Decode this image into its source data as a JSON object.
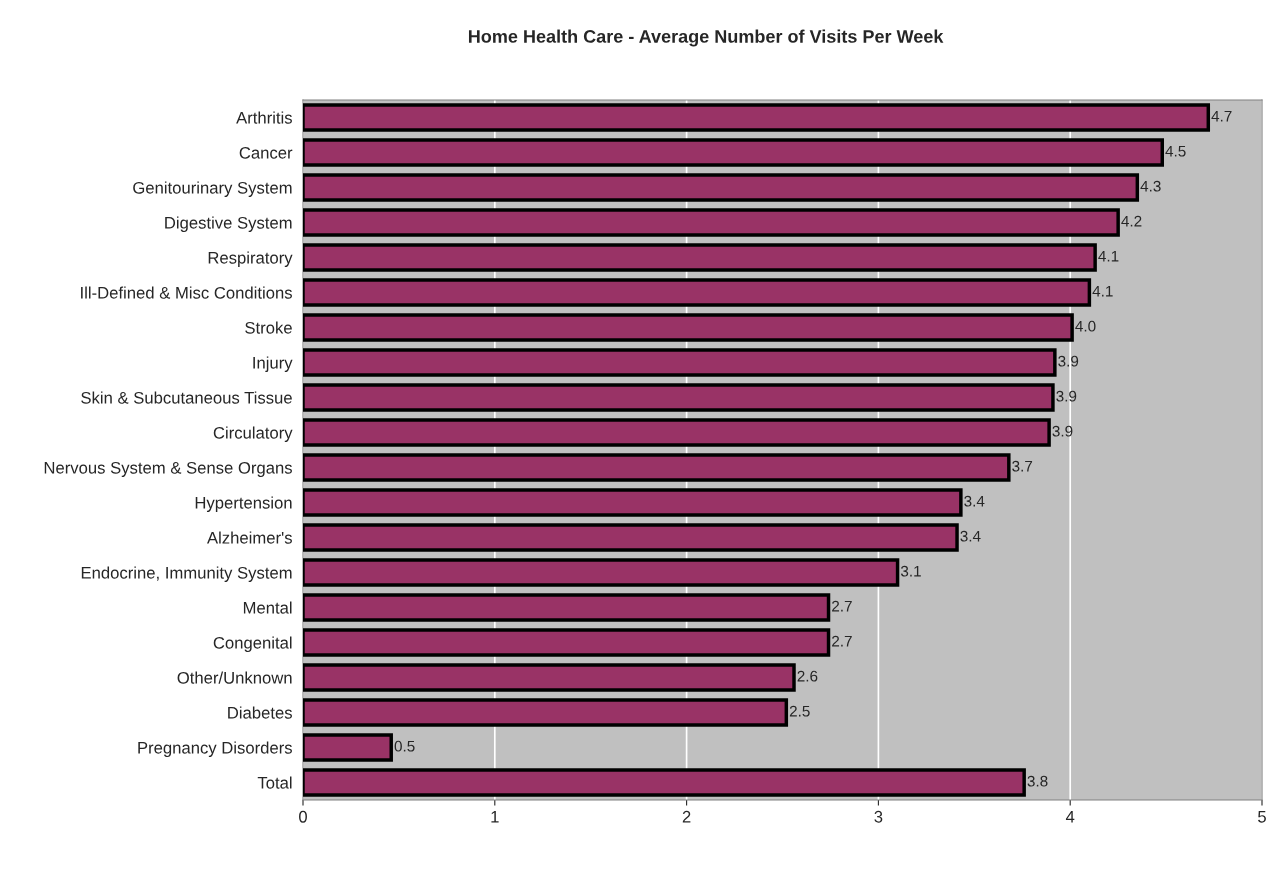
{
  "chart_data": {
    "type": "bar",
    "orientation": "horizontal",
    "title": "Home Health Care - Average Number of Visits Per Week",
    "categories": [
      "Arthritis",
      "Cancer",
      "Genitourinary System",
      "Digestive System",
      "Respiratory",
      "Ill-Defined & Misc Conditions",
      "Stroke",
      "Injury",
      "Skin & Subcutaneous Tissue",
      "Circulatory",
      "Nervous System & Sense Organs",
      "Hypertension",
      "Alzheimer's",
      "Endocrine, Immunity System",
      "Mental",
      "Congenital",
      "Other/Unknown",
      "Diabetes",
      "Pregnancy Disorders",
      "Total"
    ],
    "values": [
      4.72,
      4.48,
      4.35,
      4.25,
      4.13,
      4.1,
      4.01,
      3.92,
      3.91,
      3.89,
      3.68,
      3.43,
      3.41,
      3.1,
      2.74,
      2.74,
      2.56,
      2.52,
      0.46,
      3.76
    ],
    "value_labels": [
      "4.7",
      "4.5",
      "4.3",
      "4.2",
      "4.1",
      "4.1",
      "4.0",
      "3.9",
      "3.9",
      "3.9",
      "3.7",
      "3.4",
      "3.4",
      "3.1",
      "2.7",
      "2.7",
      "2.6",
      "2.5",
      "0.5",
      "3.8"
    ],
    "color": "#993366",
    "xlim": [
      0,
      5
    ],
    "xticks": [
      0,
      1,
      2,
      3,
      4,
      5
    ],
    "grid": "x"
  }
}
